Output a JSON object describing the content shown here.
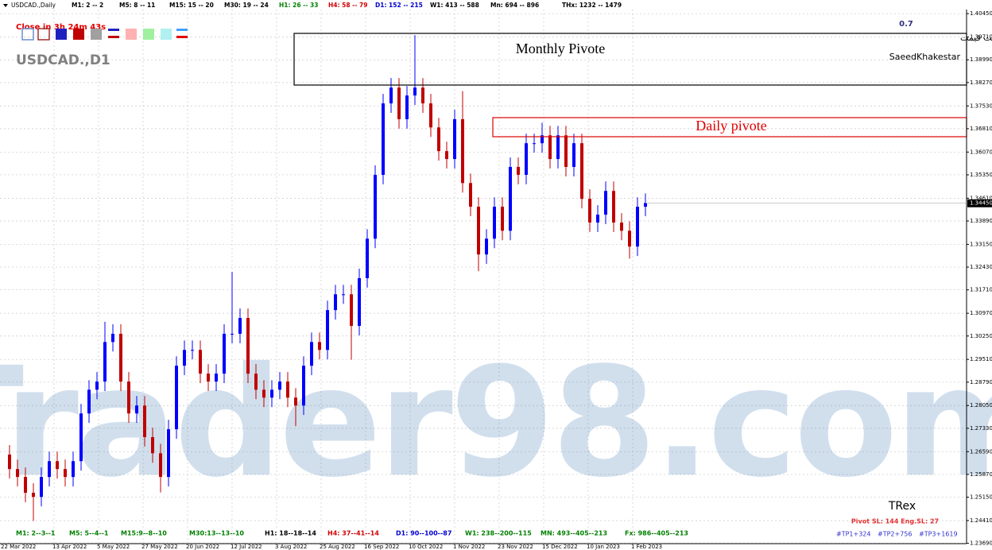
{
  "header": {
    "symbol": "USDCAD.,Daily",
    "stats": [
      {
        "text": "M1: 2 -- 2",
        "color": "#000000"
      },
      {
        "text": "M5: 8 -- 11",
        "color": "#000000"
      },
      {
        "text": "M15: 15 -- 20",
        "color": "#000000"
      },
      {
        "text": "M30: 19 -- 24",
        "color": "#000000"
      },
      {
        "text": "H1: 26 -- 33",
        "color": "#008000"
      },
      {
        "text": "H4: 58 -- 79",
        "color": "#d00000"
      },
      {
        "text": "D1: 152 -- 215",
        "color": "#0000d0"
      },
      {
        "text": "W1: 413 -- 588",
        "color": "#000000"
      },
      {
        "text": "Mn: 694 -- 896",
        "color": "#000000"
      },
      {
        "text": "THx: 1232 -- 1479",
        "color": "#000000"
      }
    ],
    "countdown": "Close in 3h 24m 43s",
    "chart_name": "USDCAD.,D1",
    "version": "0.7",
    "persian_title": "رفتارشناسی حرکت قیمت",
    "author": "SaeedKhakestar"
  },
  "annotations": {
    "monthly": "Monthly Pivote",
    "daily": "Daily pivote",
    "watermark": "Trader98.com"
  },
  "footer": {
    "stats": [
      {
        "text": "M1: 2--3--1",
        "color": "#008000"
      },
      {
        "text": "M5: 5--4--1",
        "color": "#008000"
      },
      {
        "text": "M15:9--8--10",
        "color": "#008000"
      },
      {
        "text": "M30:13--13--10",
        "color": "#008000"
      },
      {
        "text": "H1: 18--18--14",
        "color": "#000000"
      },
      {
        "text": "H4: 37--41--14",
        "color": "#d00000"
      },
      {
        "text": "D1: 90--100--87",
        "color": "#0000d0"
      },
      {
        "text": "W1: 238--200--115",
        "color": "#008000"
      },
      {
        "text": "MN: 493--405--213",
        "color": "#008000"
      },
      {
        "text": "Fx: 986--405--213",
        "color": "#008000"
      }
    ],
    "trex": "TRex",
    "pivot": "Pivot SL: 144  Eng.SL: 27",
    "tps": [
      "#TP1+324",
      "#TP2+756",
      "#TP3+1619"
    ]
  },
  "chart_data": {
    "type": "candlestick",
    "up_color": "#0000ff",
    "down_color": "#c00000",
    "grid": true,
    "ylim": [
      1.2368,
      1.4058
    ],
    "yticks": [
      {
        "value": 1.4045,
        "label": "1.40450"
      },
      {
        "value": 1.3971,
        "label": "1.39710"
      },
      {
        "value": 1.3899,
        "label": "1.38990"
      },
      {
        "value": 1.3827,
        "label": "1.38270"
      },
      {
        "value": 1.3753,
        "label": "1.37530"
      },
      {
        "value": 1.3681,
        "label": "1.36810"
      },
      {
        "value": 1.3607,
        "label": "1.36070"
      },
      {
        "value": 1.3535,
        "label": "1.35350"
      },
      {
        "value": 1.3461,
        "label": "1.34610"
      },
      {
        "value": 1.3389,
        "label": "1.33890"
      },
      {
        "value": 1.3315,
        "label": "1.33150"
      },
      {
        "value": 1.3243,
        "label": "1.32430"
      },
      {
        "value": 1.3171,
        "label": "1.31710"
      },
      {
        "value": 1.3097,
        "label": "1.30970"
      },
      {
        "value": 1.3025,
        "label": "1.30250"
      },
      {
        "value": 1.2951,
        "label": "1.29510"
      },
      {
        "value": 1.2879,
        "label": "1.28790"
      },
      {
        "value": 1.2805,
        "label": "1.28050"
      },
      {
        "value": 1.2733,
        "label": "1.27330"
      },
      {
        "value": 1.2659,
        "label": "1.26590"
      },
      {
        "value": 1.2587,
        "label": "1.25870"
      },
      {
        "value": 1.2515,
        "label": "1.25150"
      },
      {
        "value": 1.2441,
        "label": "1.24410"
      },
      {
        "value": 1.2369,
        "label": "1.23690"
      }
    ],
    "last_price": {
      "value": 1.3445,
      "label": "1.34450"
    },
    "xtick_labels": [
      "22 Mar 2022",
      "13 Apr 2022",
      "5 May 2022",
      "27 May 2022",
      "20 Jun 2022",
      "12 Jul 2022",
      "3 Aug 2022",
      "25 Aug 2022",
      "16 Sep 2022",
      "10 Oct 2022",
      "1 Nov 2022",
      "23 Nov 2022",
      "15 Dec 2022",
      "10 Jan 2023",
      "1 Feb 2023"
    ],
    "open": [
      1.265,
      1.2604,
      1.2579,
      1.2529,
      1.2516,
      1.2579,
      1.2629,
      1.2604,
      1.2579,
      1.2629,
      1.278,
      1.2855,
      1.2881,
      1.3006,
      1.3032,
      1.2881,
      1.278,
      1.2805,
      1.2705,
      1.2654,
      1.2579,
      1.273,
      1.2931,
      1.2981,
      1.2981,
      1.2906,
      1.2881,
      1.2906,
      1.3032,
      1.3032,
      1.3082,
      1.2906,
      1.2855,
      1.283,
      1.2855,
      1.2881,
      1.283,
      1.2805,
      1.2931,
      1.3006,
      1.2981,
      1.3107,
      1.3157,
      1.3157,
      1.3057,
      1.3208,
      1.3333,
      1.3535,
      1.3761,
      1.3811,
      1.3711,
      1.3786,
      1.3811,
      1.3761,
      1.3685,
      1.361,
      1.3585,
      1.3711,
      1.3509,
      1.3434,
      1.3283,
      1.3333,
      1.3434,
      1.3358,
      1.356,
      1.3535,
      1.3635,
      1.3635,
      1.366,
      1.3585,
      1.366,
      1.356,
      1.3635,
      1.3459,
      1.3384,
      1.3409,
      1.3484,
      1.3384,
      1.3358,
      1.3308,
      1.3434
    ],
    "high": [
      1.268,
      1.2634,
      1.2609,
      1.2559,
      1.2609,
      1.2659,
      1.2659,
      1.2634,
      1.2659,
      1.281,
      1.2885,
      1.2911,
      1.307,
      1.3062,
      1.3062,
      1.2911,
      1.2835,
      1.2835,
      1.2735,
      1.2684,
      1.276,
      1.2961,
      1.3011,
      1.3011,
      1.3011,
      1.2936,
      1.2936,
      1.3062,
      1.3228,
      1.3112,
      1.3112,
      1.2936,
      1.2885,
      1.2885,
      1.2911,
      1.2911,
      1.286,
      1.2961,
      1.3036,
      1.3036,
      1.3137,
      1.3187,
      1.3187,
      1.3187,
      1.3238,
      1.3363,
      1.3565,
      1.3791,
      1.3841,
      1.3841,
      1.3816,
      1.3977,
      1.3841,
      1.3791,
      1.3715,
      1.364,
      1.3741,
      1.38,
      1.3539,
      1.3464,
      1.3363,
      1.3464,
      1.3464,
      1.359,
      1.359,
      1.3665,
      1.3665,
      1.37,
      1.369,
      1.369,
      1.369,
      1.3665,
      1.3665,
      1.3489,
      1.3439,
      1.3514,
      1.3514,
      1.3414,
      1.3388,
      1.3464,
      1.3476
    ],
    "low": [
      1.2574,
      1.2549,
      1.2499,
      1.244,
      1.2486,
      1.2549,
      1.2574,
      1.2549,
      1.2549,
      1.2599,
      1.275,
      1.2825,
      1.2851,
      1.2976,
      1.2851,
      1.275,
      1.275,
      1.2675,
      1.2624,
      1.253,
      1.2549,
      1.27,
      1.2901,
      1.2951,
      1.2876,
      1.2851,
      1.2851,
      1.2876,
      1.3002,
      1.3002,
      1.2876,
      1.2825,
      1.28,
      1.28,
      1.2825,
      1.28,
      1.274,
      1.2775,
      1.2901,
      1.2951,
      1.2951,
      1.3077,
      1.3127,
      1.295,
      1.3027,
      1.3178,
      1.3303,
      1.3505,
      1.3731,
      1.3681,
      1.3681,
      1.3756,
      1.3731,
      1.3655,
      1.358,
      1.3555,
      1.3555,
      1.3479,
      1.3404,
      1.323,
      1.3253,
      1.3303,
      1.3328,
      1.3328,
      1.3505,
      1.3505,
      1.3605,
      1.3605,
      1.3555,
      1.3555,
      1.353,
      1.353,
      1.3429,
      1.3354,
      1.3354,
      1.3379,
      1.3354,
      1.3328,
      1.327,
      1.3278,
      1.3404
    ],
    "close": [
      1.2604,
      1.2579,
      1.2529,
      1.2516,
      1.2579,
      1.2629,
      1.2604,
      1.2579,
      1.2629,
      1.278,
      1.2855,
      1.2881,
      1.3006,
      1.3032,
      1.2881,
      1.278,
      1.2805,
      1.2705,
      1.2654,
      1.2579,
      1.273,
      1.2931,
      1.2981,
      1.2981,
      1.2906,
      1.2881,
      1.2906,
      1.3032,
      1.3032,
      1.3082,
      1.2906,
      1.2855,
      1.283,
      1.2855,
      1.2881,
      1.283,
      1.2805,
      1.2931,
      1.3006,
      1.2981,
      1.3107,
      1.3157,
      1.3157,
      1.3057,
      1.3208,
      1.3333,
      1.3535,
      1.3761,
      1.3811,
      1.3711,
      1.3786,
      1.3811,
      1.3761,
      1.3685,
      1.361,
      1.3585,
      1.3711,
      1.3509,
      1.3434,
      1.3283,
      1.3333,
      1.3434,
      1.3358,
      1.356,
      1.3535,
      1.3635,
      1.3635,
      1.366,
      1.3585,
      1.366,
      1.356,
      1.3635,
      1.3459,
      1.3384,
      1.3409,
      1.3484,
      1.3384,
      1.3358,
      1.3308,
      1.3434,
      1.3446
    ]
  }
}
